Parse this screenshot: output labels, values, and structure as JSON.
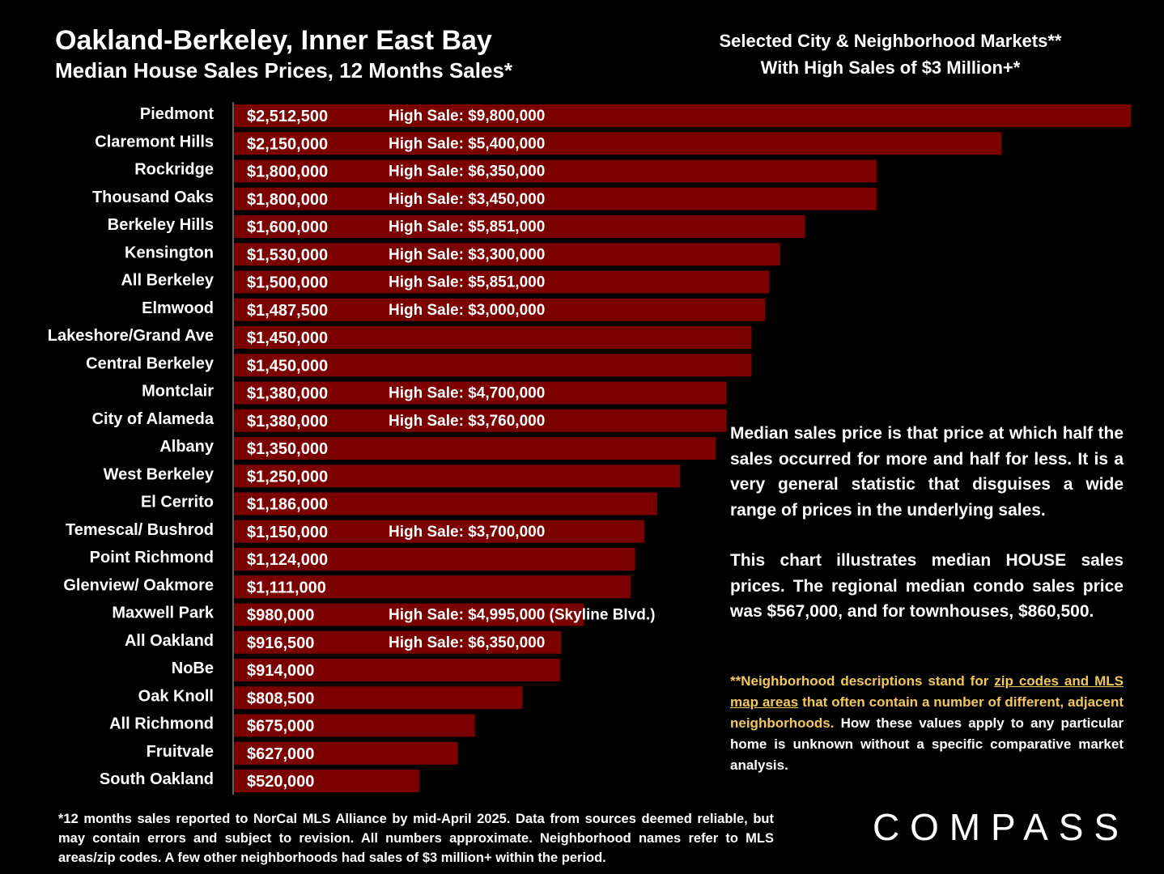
{
  "header": {
    "title_line1": "Oakland-Berkeley, Inner East Bay",
    "title_line2": "Median House Sales Prices, 12 Months Sales*",
    "subtitle_line1": "Selected City & Neighborhood Markets**",
    "subtitle_line2": "With High Sales of $3 Million+*"
  },
  "chart_data": {
    "type": "bar",
    "orientation": "horizontal",
    "bar_color": "#7b0000",
    "categories": [
      "Piedmont",
      "Claremont Hills",
      "Rockridge",
      "Thousand Oaks",
      "Berkeley Hills",
      "Kensington",
      "All Berkeley",
      "Elmwood",
      "Lakeshore/Grand Ave",
      "Central Berkeley",
      "Montclair",
      "City of Alameda",
      "Albany",
      "West Berkeley",
      "El Cerrito",
      "Temescal/ Bushrod",
      "Point Richmond",
      "Glenview/ Oakmore",
      "Maxwell Park",
      "All Oakland",
      "NoBe",
      "Oak Knoll",
      "All Richmond",
      "Fruitvale",
      "South Oakland"
    ],
    "values": [
      2512500,
      2150000,
      1800000,
      1800000,
      1600000,
      1530000,
      1500000,
      1487500,
      1450000,
      1450000,
      1380000,
      1380000,
      1350000,
      1250000,
      1186000,
      1150000,
      1124000,
      1111000,
      980000,
      916500,
      914000,
      808500,
      675000,
      627000,
      520000
    ],
    "value_labels": [
      "$2,512,500",
      "$2,150,000",
      "$1,800,000",
      "$1,800,000",
      "$1,600,000",
      "$1,530,000",
      "$1,500,000",
      "$1,487,500",
      "$1,450,000",
      "$1,450,000",
      "$1,380,000",
      "$1,380,000",
      "$1,350,000",
      "$1,250,000",
      "$1,186,000",
      "$1,150,000",
      "$1,124,000",
      "$1,111,000",
      "$980,000",
      "$916,500",
      "$914,000",
      "$808,500",
      "$675,000",
      "$627,000",
      "$520,000"
    ],
    "high_sale_labels": [
      "High Sale:  $9,800,000",
      "High Sale:  $5,400,000",
      "High Sale:  $6,350,000",
      "High Sale:  $3,450,000",
      "High Sale:  $5,851,000",
      "High Sale:  $3,300,000",
      "High Sale:  $5,851,000",
      "High Sale:  $3,000,000",
      "",
      "",
      "High Sale:  $4,700,000",
      "High Sale:  $3,760,000",
      "",
      "",
      "",
      "High Sale:  $3,700,000",
      "",
      "",
      "High Sale:  $4,995,000 (Skyline Blvd.)",
      "High Sale:  $6,350,000",
      "",
      "",
      "",
      "",
      ""
    ]
  },
  "notes": {
    "median_def": "Median sales price is that price at which half the sales occurred for more and half for less. It is a very general statistic that disguises a wide range of prices in the underlying sales.",
    "chart_desc": "This chart illustrates median HOUSE sales prices. The regional median condo sales price was $567,000, and for townhouses, $860,500.",
    "neighborhood_a": "**Neighborhood descriptions stand for ",
    "neighborhood_link": "zip codes and MLS map areas",
    "neighborhood_b": " that often contain a number of different, adjacent neighborhoods.",
    "neighborhood_c": " How these values apply to any particular home is unknown without a specific comparative market analysis."
  },
  "footnote": "*12 months sales reported to NorCal MLS Alliance by mid-April 2025. Data from sources deemed reliable, but may contain errors and subject to revision. All numbers approximate. Neighborhood names refer to MLS areas/zip codes. A few other neighborhoods had sales of $3 million+ within the period.",
  "logo": {
    "text": "COMPASS"
  }
}
